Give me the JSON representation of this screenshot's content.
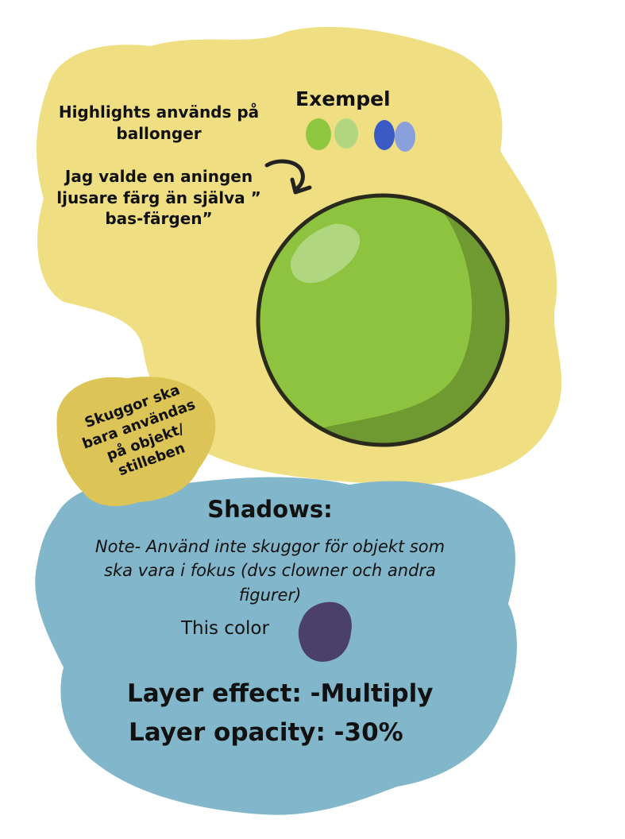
{
  "highlights_section": {
    "intro_line_1": "Highlights används på",
    "intro_line_2": "ballonger",
    "note_line_1": "Jag valde en aningen",
    "note_line_2": "ljusare färg än själva ”",
    "note_line_3": "bas-färgen”",
    "example_label": "Exempel",
    "example_swatches": [
      {
        "name": "green-base",
        "color": "#8ec63f"
      },
      {
        "name": "green-highlight",
        "color": "#b2d680"
      },
      {
        "name": "blue-base",
        "color": "#3b5bc4"
      },
      {
        "name": "blue-highlight",
        "color": "#8aa0dd"
      }
    ],
    "ball": {
      "base_color": "#8dc33e",
      "shadow_color": "#6e9a31",
      "highlight_color": "#b5d887",
      "outline_color": "#2a2a1c"
    },
    "background_color": "#f0df82"
  },
  "shadow_rule_blob": {
    "line_1": "Skuggor ska",
    "line_2": "bara användas",
    "line_3": "på objekt/",
    "line_4": "stilleben",
    "background_color": "#dcc457"
  },
  "shadows_section": {
    "title": "Shadows:",
    "note_line_1": "Note- Använd inte skuggor för objekt som",
    "note_line_2": "ska vara i fokus (dvs clowner och andra",
    "note_line_3": "figurer)",
    "color_label": "This color",
    "shadow_swatch_color": "#4a4068",
    "layer_effect": "Layer effect: -Multiply",
    "layer_opacity": "Layer opacity: -30%",
    "background_color": "#82b7cb"
  }
}
